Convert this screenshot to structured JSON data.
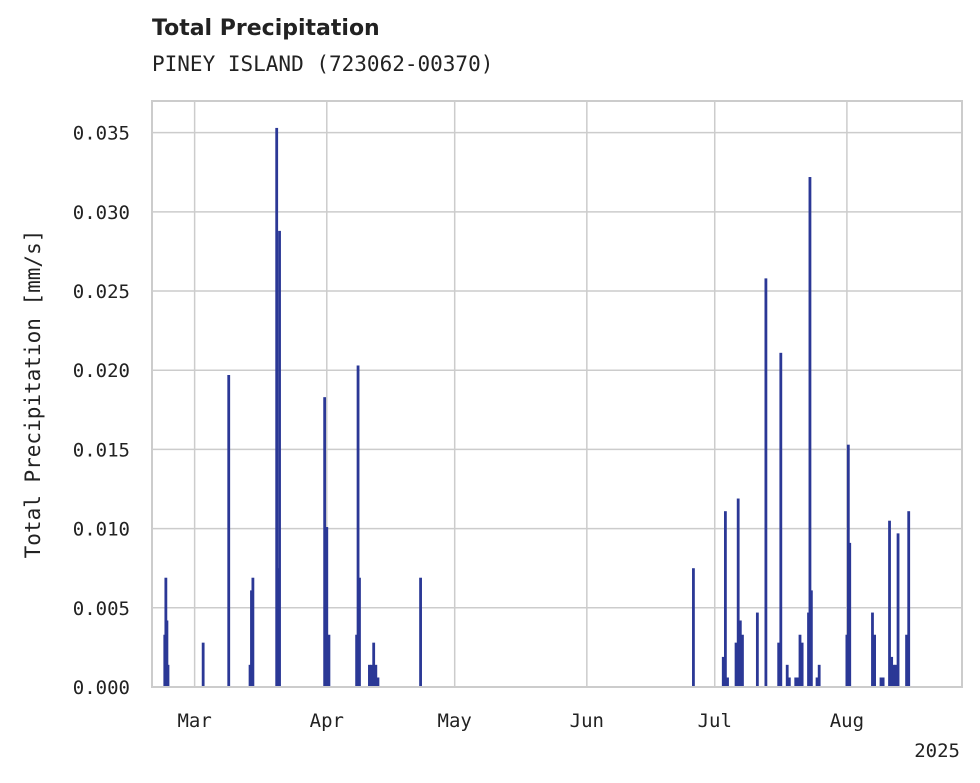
{
  "chart_data": {
    "type": "bar",
    "title": "Total Precipitation",
    "subtitle": "PINEY ISLAND (723062-00370)",
    "xlabel": "",
    "ylabel": "Total Precipitation [mm/s]",
    "xlim": [
      "2025-02-19",
      "2025-08-28"
    ],
    "ylim": [
      0,
      0.037
    ],
    "y_ticks": [
      "0.000",
      "0.005",
      "0.010",
      "0.015",
      "0.020",
      "0.025",
      "0.030",
      "0.035"
    ],
    "x_ticks": [
      {
        "date": "2025-03-01",
        "label": "Mar"
      },
      {
        "date": "2025-04-01",
        "label": "Apr"
      },
      {
        "date": "2025-05-01",
        "label": "May"
      },
      {
        "date": "2025-06-01",
        "label": "Jun"
      },
      {
        "date": "2025-07-01",
        "label": "Jul"
      },
      {
        "date": "2025-08-01",
        "label": "Aug"
      }
    ],
    "year_label": "2025",
    "grid": true,
    "legend": "none",
    "bar_color": "#2b3896",
    "series": [
      {
        "points": [
          [
            "2025-02-22",
            0.0033
          ],
          [
            "2025-02-22T06",
            0.0069
          ],
          [
            "2025-02-22T12",
            0.0042
          ],
          [
            "2025-02-22T18",
            0.0014
          ],
          [
            "2025-03-03",
            0.0028
          ],
          [
            "2025-03-09",
            0.0197
          ],
          [
            "2025-03-14",
            0.0014
          ],
          [
            "2025-03-14T08",
            0.0061
          ],
          [
            "2025-03-14T16",
            0.0069
          ],
          [
            "2025-03-20T06",
            0.0353
          ],
          [
            "2025-03-20T14",
            0.0075
          ],
          [
            "2025-03-20T22",
            0.0288
          ],
          [
            "2025-03-31T12",
            0.0183
          ],
          [
            "2025-04-01",
            0.0101
          ],
          [
            "2025-04-01T12",
            0.0033
          ],
          [
            "2025-04-08",
            0.0033
          ],
          [
            "2025-04-08T08",
            0.0203
          ],
          [
            "2025-04-08T16",
            0.0069
          ],
          [
            "2025-04-11",
            0.0014
          ],
          [
            "2025-04-11T12",
            0.0014
          ],
          [
            "2025-04-12",
            0.0028
          ],
          [
            "2025-04-12T12",
            0.0014
          ],
          [
            "2025-04-13",
            0.0006
          ],
          [
            "2025-04-23",
            0.0069
          ],
          [
            "2025-06-26",
            0.0075
          ],
          [
            "2025-07-03",
            0.0019
          ],
          [
            "2025-07-03T12",
            0.0111
          ],
          [
            "2025-07-04",
            0.0006
          ],
          [
            "2025-07-06",
            0.0028
          ],
          [
            "2025-07-06T12",
            0.0119
          ],
          [
            "2025-07-07",
            0.0042
          ],
          [
            "2025-07-07T12",
            0.0033
          ],
          [
            "2025-07-11",
            0.0047
          ],
          [
            "2025-07-13",
            0.0258
          ],
          [
            "2025-07-16",
            0.0028
          ],
          [
            "2025-07-16T12",
            0.0211
          ],
          [
            "2025-07-18",
            0.0014
          ],
          [
            "2025-07-18T12",
            0.0006
          ],
          [
            "2025-07-20",
            0.0006
          ],
          [
            "2025-07-20T12",
            0.0006
          ],
          [
            "2025-07-21",
            0.0033
          ],
          [
            "2025-07-21T12",
            0.0028
          ],
          [
            "2025-07-23",
            0.0047
          ],
          [
            "2025-07-23T08",
            0.0322
          ],
          [
            "2025-07-23T16",
            0.0061
          ],
          [
            "2025-07-25",
            0.0006
          ],
          [
            "2025-07-25T12",
            0.0014
          ],
          [
            "2025-08-01",
            0.0033
          ],
          [
            "2025-08-01T08",
            0.0153
          ],
          [
            "2025-08-01T16",
            0.0091
          ],
          [
            "2025-08-07",
            0.0047
          ],
          [
            "2025-08-07T12",
            0.0033
          ],
          [
            "2025-08-09",
            0.0006
          ],
          [
            "2025-08-09T12",
            0.0006
          ],
          [
            "2025-08-11",
            0.0105
          ],
          [
            "2025-08-11T12",
            0.0019
          ],
          [
            "2025-08-12",
            0.0014
          ],
          [
            "2025-08-12T12",
            0.0014
          ],
          [
            "2025-08-13",
            0.0097
          ],
          [
            "2025-08-15",
            0.0033
          ],
          [
            "2025-08-15T12",
            0.0111
          ]
        ]
      }
    ]
  }
}
